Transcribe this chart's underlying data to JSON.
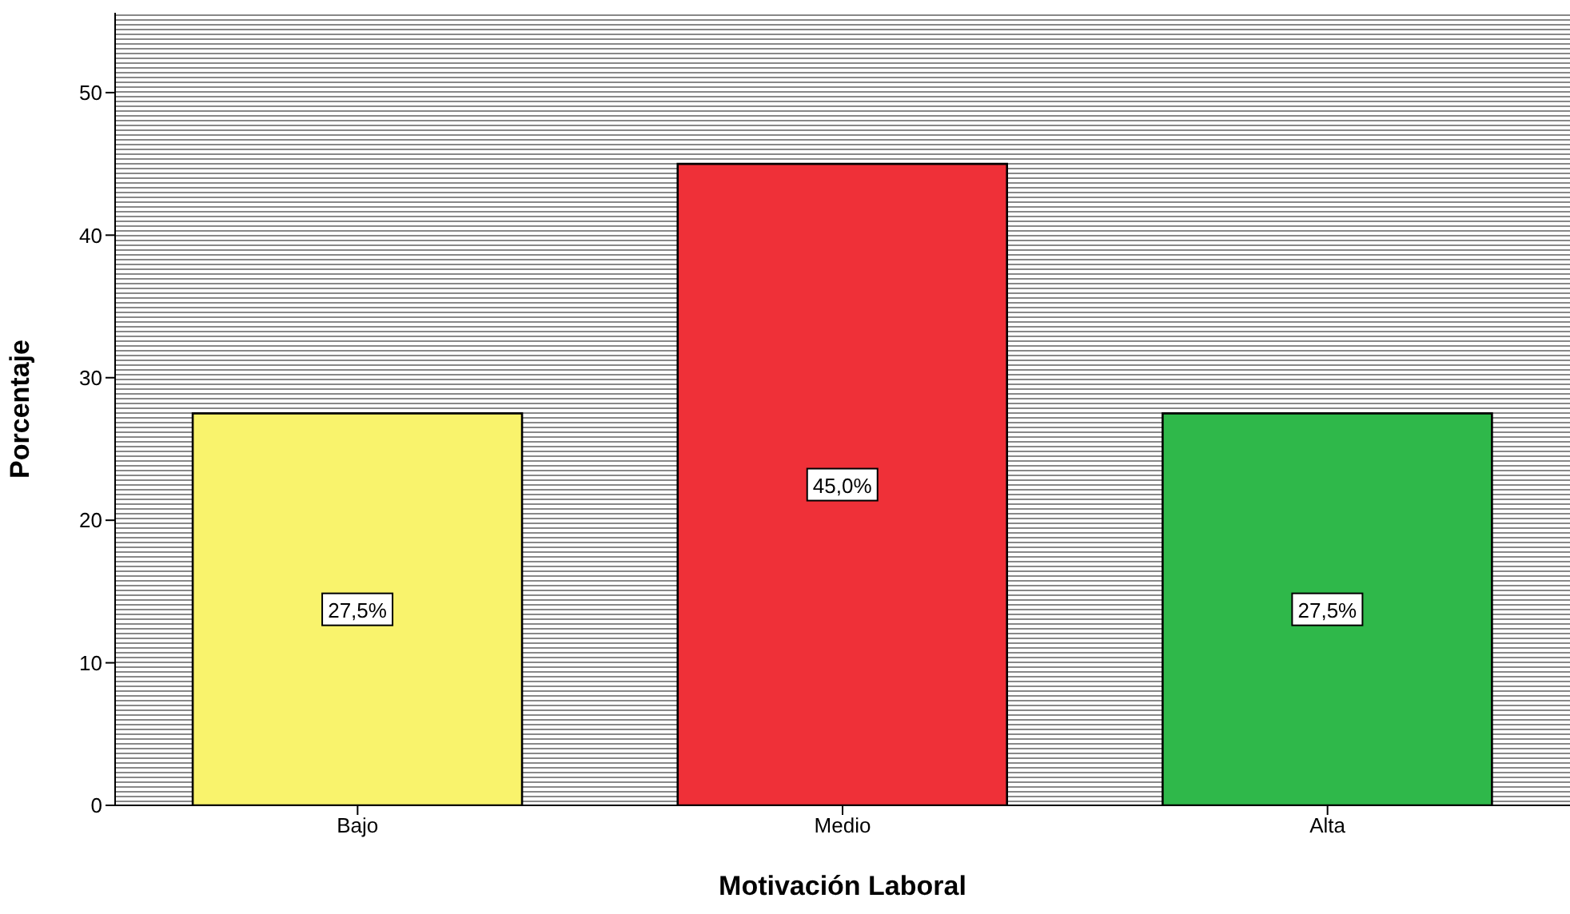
{
  "chart_data": {
    "type": "bar",
    "xlabel": "Motivación Laboral",
    "ylabel": "Porcentaje",
    "categories": [
      "Bajo",
      "Medio",
      "Alta"
    ],
    "values": [
      27.5,
      45.0,
      27.5
    ],
    "colors": [
      "#f9f36c",
      "#ef3038",
      "#2fb84a"
    ],
    "value_labels": [
      "27,5%",
      "45,0%",
      "27,5%"
    ],
    "ylim": [
      0,
      55.6
    ],
    "yticks": [
      0,
      10,
      20,
      30,
      40,
      50
    ]
  }
}
